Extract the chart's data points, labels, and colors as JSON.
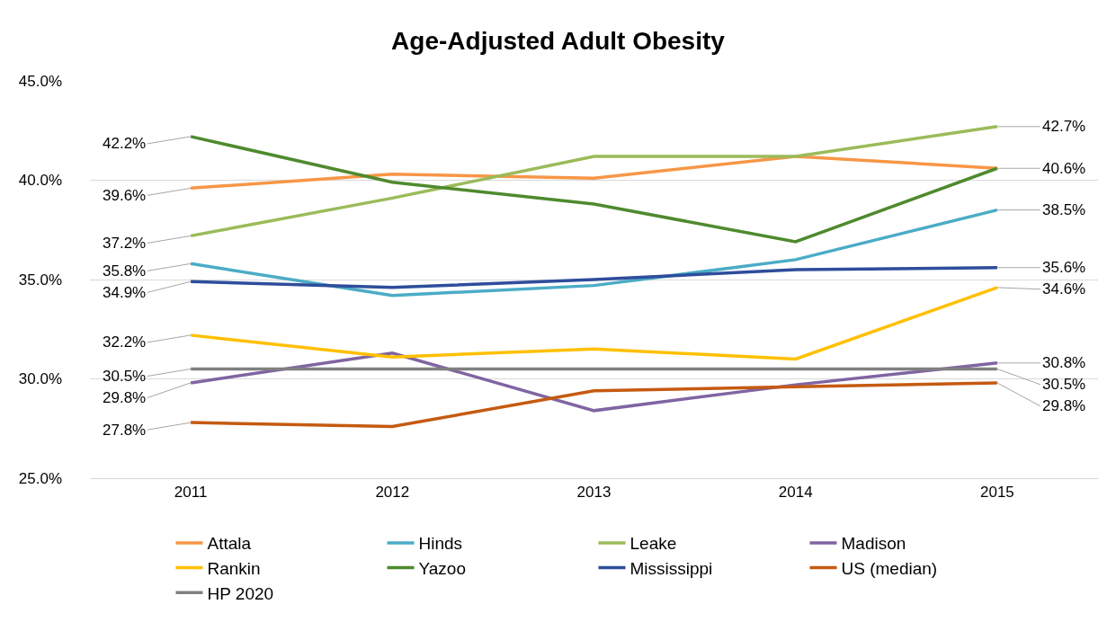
{
  "chart_data": {
    "type": "line",
    "title": "Age-Adjusted Adult Obesity",
    "categories": [
      "2011",
      "2012",
      "2013",
      "2014",
      "2015"
    ],
    "ylim": [
      25,
      45
    ],
    "yticks": [
      {
        "value": 25,
        "label": "25.0%"
      },
      {
        "value": 30,
        "label": "30.0%"
      },
      {
        "value": 35,
        "label": "35.0%"
      },
      {
        "value": 40,
        "label": "40.0%"
      },
      {
        "value": 45,
        "label": "45.0%"
      }
    ],
    "grid": "y",
    "legend": "bottom",
    "marker": "none",
    "line_style": "solid",
    "series": [
      {
        "name": "Attala",
        "color": "#f79646",
        "values": [
          39.6,
          40.3,
          40.1,
          41.2,
          40.6
        ],
        "value_labels": [
          "39.6%",
          null,
          null,
          null,
          null
        ]
      },
      {
        "name": "Hinds",
        "color": "#4bacc6",
        "values": [
          35.8,
          34.2,
          34.7,
          36.0,
          38.5
        ],
        "value_labels": [
          "35.8%",
          null,
          null,
          null,
          "38.5%"
        ]
      },
      {
        "name": "Leake",
        "color": "#9bbb59",
        "values": [
          37.2,
          39.1,
          41.2,
          41.2,
          42.7
        ],
        "value_labels": [
          "37.2%",
          null,
          null,
          null,
          "42.7%"
        ]
      },
      {
        "name": "Madison",
        "color": "#8064a2",
        "values": [
          29.8,
          31.3,
          28.4,
          29.7,
          30.8
        ],
        "value_labels": [
          "29.8%",
          null,
          null,
          null,
          "30.8%"
        ]
      },
      {
        "name": "Rankin",
        "color": "#ffc000",
        "values": [
          32.2,
          31.1,
          31.5,
          31.0,
          34.6
        ],
        "value_labels": [
          "32.2%",
          null,
          null,
          null,
          "34.6%"
        ]
      },
      {
        "name": "Yazoo",
        "color": "#4f8a2e",
        "values": [
          42.2,
          39.9,
          38.8,
          36.9,
          40.6
        ],
        "value_labels": [
          "42.2%",
          null,
          null,
          null,
          "40.6%"
        ]
      },
      {
        "name": "Mississippi",
        "color": "#2e4d9b",
        "values": [
          34.9,
          34.6,
          35.0,
          35.5,
          35.6
        ],
        "value_labels": [
          "34.9%",
          null,
          null,
          null,
          "35.6%"
        ]
      },
      {
        "name": "US (median)",
        "color": "#c55a11",
        "values": [
          27.8,
          27.6,
          29.4,
          29.6,
          29.8
        ],
        "value_labels": [
          "27.8%",
          null,
          null,
          null,
          "29.8%"
        ]
      },
      {
        "name": "HP 2020",
        "color": "#808080",
        "values": [
          30.5,
          30.5,
          30.5,
          30.5,
          30.5
        ],
        "value_labels": [
          "30.5%",
          null,
          null,
          null,
          "30.5%"
        ]
      }
    ]
  }
}
